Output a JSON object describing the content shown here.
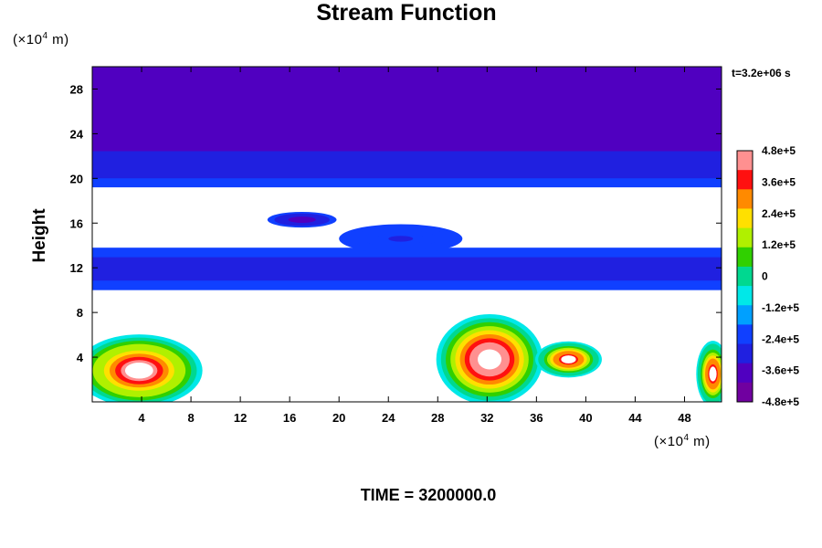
{
  "chart_data": {
    "type": "heatmap",
    "title": "Stream Function",
    "ylabel": "Height",
    "y_unit": [
      "(×10",
      "4",
      " m)"
    ],
    "x_unit": [
      "(×10",
      "4",
      " m)"
    ],
    "time_label": "t=3.2e+06 s",
    "footer": "TIME = 3200000.0",
    "xlim": [
      0,
      51
    ],
    "ylim": [
      0,
      30
    ],
    "x_ticks": [
      4,
      8,
      12,
      16,
      20,
      24,
      28,
      32,
      36,
      40,
      44,
      48
    ],
    "y_ticks": [
      4,
      8,
      12,
      16,
      20,
      24,
      28
    ],
    "colorbar": {
      "range": [
        -480000,
        480000
      ],
      "tick_values": [
        480000,
        360000,
        240000,
        120000,
        0,
        -120000,
        -240000,
        -360000,
        -480000
      ],
      "tick_labels": [
        "4.8e+5",
        "3.6e+5",
        "2.4e+5",
        "1.2e+5",
        "0",
        "-1.2e+5",
        "-2.4e+5",
        "-3.6e+5",
        "-4.8e+5"
      ],
      "colors": [
        "#ff9090",
        "#ff1010",
        "#ff8a00",
        "#ffe000",
        "#b0f000",
        "#30d000",
        "#00d890",
        "#00e8e8",
        "#00a0ff",
        "#1040ff",
        "#2020e0",
        "#5000c0",
        "#7000a0"
      ]
    },
    "features": [
      {
        "kind": "band",
        "x0": 0,
        "x1": 51,
        "y0": 19.2,
        "y1": 30,
        "level": -0.75
      },
      {
        "kind": "band",
        "x0": 0,
        "x1": 51,
        "y0": 10.0,
        "y1": 13.8,
        "level": -0.6
      },
      {
        "kind": "blob",
        "cx": 17,
        "cy": 16.3,
        "rx": 2.8,
        "ry": 0.7,
        "level": -0.8
      },
      {
        "kind": "blob",
        "cx": 25,
        "cy": 14.6,
        "rx": 5,
        "ry": 1.3,
        "level": -0.55
      },
      {
        "kind": "blob",
        "cx": 3.8,
        "cy": 2.8,
        "rx": 3.8,
        "ry": 2.4,
        "peak": 0.95
      },
      {
        "kind": "blob",
        "cx": 32.2,
        "cy": 3.8,
        "rx": 3.2,
        "ry": 3.0,
        "peak": 1.0
      },
      {
        "kind": "blob",
        "cx": 38.6,
        "cy": 3.8,
        "rx": 2.0,
        "ry": 1.2,
        "peak": 0.8
      },
      {
        "kind": "blob",
        "cx": 50.3,
        "cy": 2.5,
        "rx": 1.0,
        "ry": 2.2,
        "peak": 0.8
      }
    ]
  }
}
